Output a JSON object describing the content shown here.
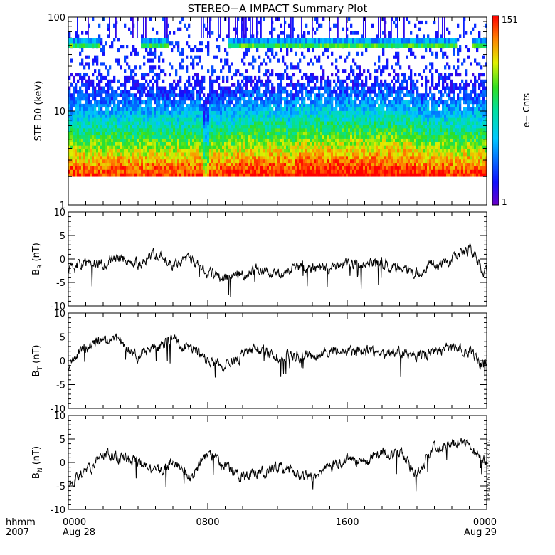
{
  "title": "STEREO−A IMPACT Summary Plot",
  "stamp": "Tue Nov  6 17:45:33 2007",
  "x_axis": {
    "corner_labels": [
      "hhmm",
      "2007"
    ],
    "ticks": [
      {
        "hour": 0,
        "time": "0000",
        "date": "Aug 28"
      },
      {
        "hour": 8,
        "time": "0800",
        "date": ""
      },
      {
        "hour": 16,
        "time": "1600",
        "date": ""
      },
      {
        "hour": 24,
        "time": "0000",
        "date": "Aug 29"
      }
    ]
  },
  "chart_data": [
    {
      "type": "heatmap",
      "ylabel": "STE D0 (keV)",
      "yscale": "log",
      "ylim": [
        1,
        100
      ],
      "yticks": [
        "1",
        "10",
        "100"
      ],
      "xlim_hours": [
        0,
        24
      ],
      "colorbar": {
        "label": "e− Cnts",
        "min": "1",
        "max": "151"
      },
      "energy_band_keV": [
        2,
        100
      ],
      "peak_band_keV": [
        2,
        4
      ]
    },
    {
      "type": "line",
      "ylabel_main": "B",
      "ylabel_sub": "R",
      "ylabel_unit": " (nT)",
      "ylim": [
        -10,
        10
      ],
      "yticks": [
        "-10",
        "-5",
        "0",
        "5",
        "10"
      ],
      "x_hours": [
        0,
        1,
        2,
        3,
        4,
        5,
        6,
        7,
        8,
        9,
        10,
        11,
        12,
        13,
        14,
        15,
        16,
        17,
        18,
        19,
        20,
        21,
        22,
        23,
        24
      ],
      "values": [
        -2,
        -1,
        -1,
        0,
        -1,
        1,
        -1,
        0,
        -3,
        -4,
        -3,
        -2,
        -3,
        -2,
        -2,
        -2,
        -1,
        -1,
        -1,
        -2,
        -3,
        -1,
        0,
        2,
        -3
      ]
    },
    {
      "type": "line",
      "ylabel_main": "B",
      "ylabel_sub": "T",
      "ylabel_unit": " (nT)",
      "ylim": [
        -10,
        10
      ],
      "yticks": [
        "-10",
        "-5",
        "0",
        "5",
        "10"
      ],
      "x_hours": [
        0,
        1,
        2,
        3,
        4,
        5,
        6,
        7,
        8,
        9,
        10,
        11,
        12,
        13,
        14,
        15,
        16,
        17,
        18,
        19,
        20,
        21,
        22,
        23,
        24
      ],
      "values": [
        -1,
        3,
        4,
        4,
        1,
        3,
        4,
        3,
        0,
        -1,
        1,
        2,
        1,
        1,
        1,
        2,
        2,
        2,
        1,
        2,
        1,
        2,
        3,
        2,
        -1
      ]
    },
    {
      "type": "line",
      "ylabel_main": "B",
      "ylabel_sub": "N",
      "ylabel_unit": " (nT)",
      "ylim": [
        -10,
        10
      ],
      "yticks": [
        "-10",
        "-5",
        "0",
        "5",
        "10"
      ],
      "x_hours": [
        0,
        1,
        2,
        3,
        4,
        5,
        6,
        7,
        8,
        9,
        10,
        11,
        12,
        13,
        14,
        15,
        16,
        17,
        18,
        19,
        20,
        21,
        22,
        23,
        24
      ],
      "values": [
        -4,
        -2,
        2,
        1,
        0,
        -2,
        0,
        -3,
        2,
        -1,
        -3,
        -2,
        -1,
        -2,
        -3,
        -1,
        1,
        0,
        2,
        2,
        -2,
        3,
        4,
        4,
        0
      ]
    }
  ]
}
